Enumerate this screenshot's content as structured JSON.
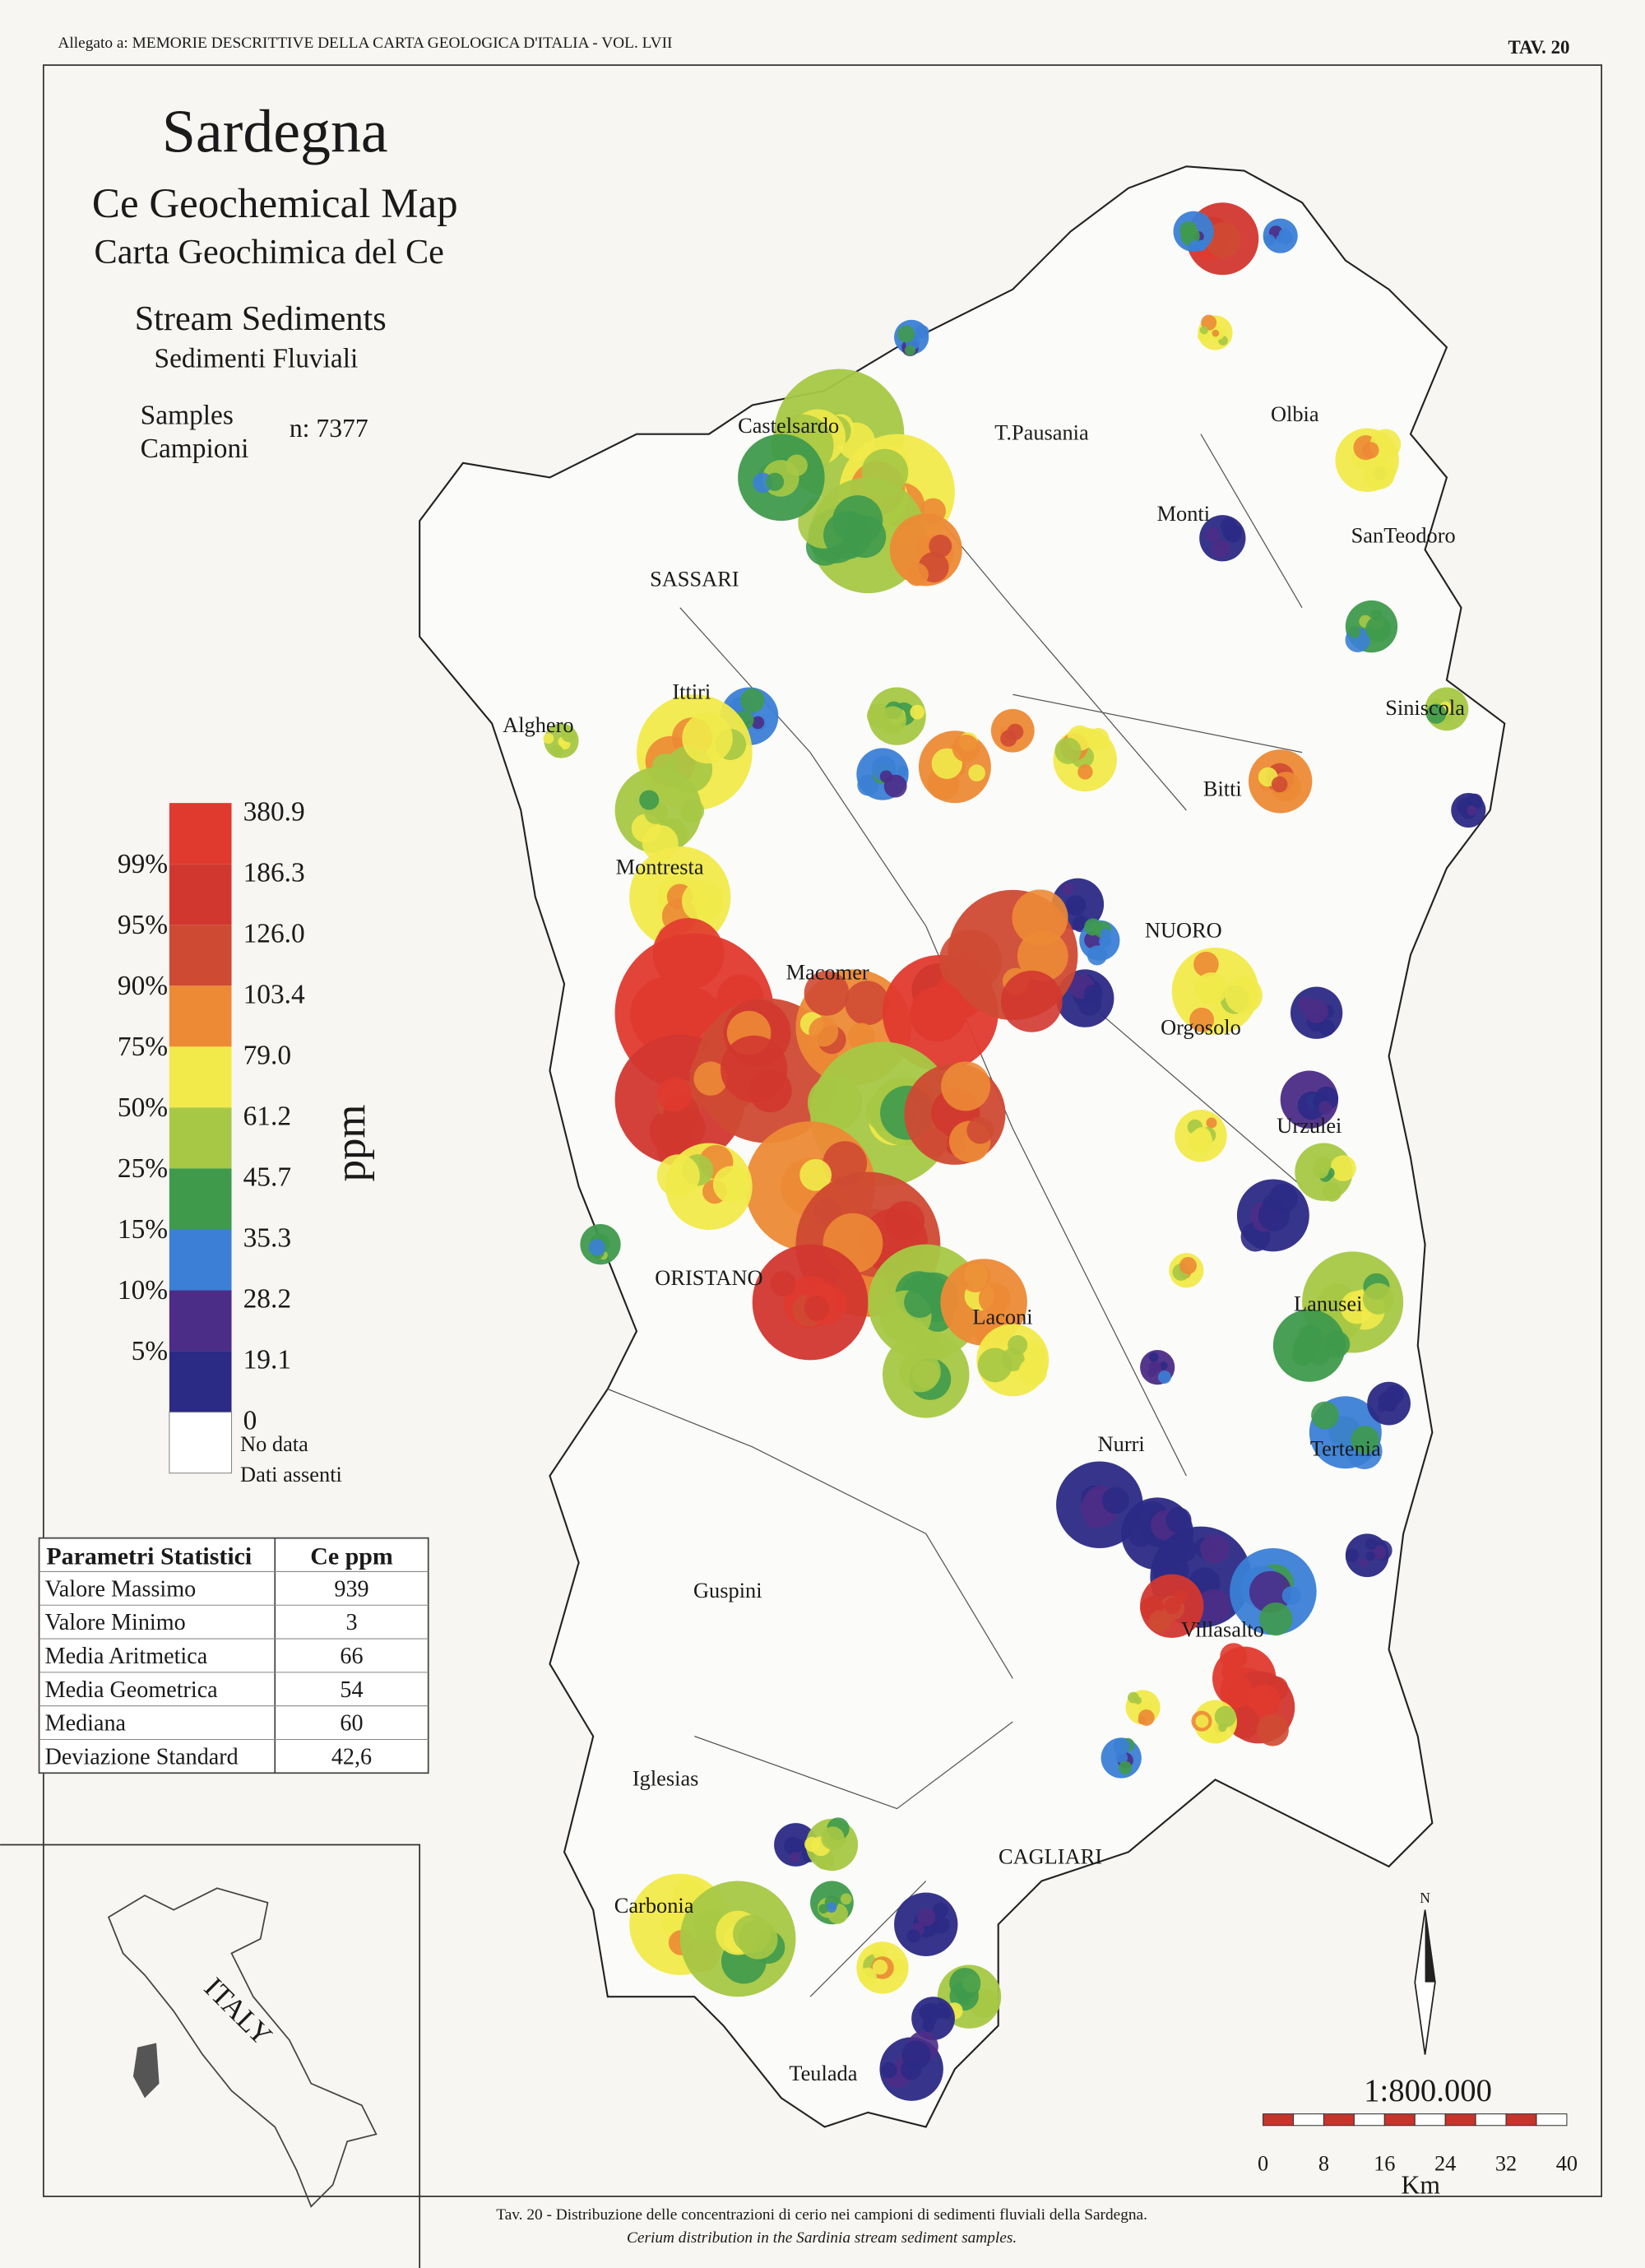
{
  "header": {
    "left": "Allegato a: MEMORIE DESCRITTIVE DELLA CARTA GEOLOGICA D'ITALIA - VOL. LVII",
    "right": "TAV. 20"
  },
  "title": {
    "region": "Sardegna",
    "en": "Ce Geochemical Map",
    "it": "Carta Geochimica del Ce",
    "media_en": "Stream Sediments",
    "media_it": "Sedimenti Fluviali",
    "samples_en": "Samples",
    "samples_it": "Campioni",
    "n": "n: 7377"
  },
  "legend": {
    "unit": "ppm",
    "breaks": [
      "380.9",
      "186.3",
      "126.0",
      "103.4",
      "79.0",
      "61.2",
      "45.7",
      "35.3",
      "28.2",
      "19.1",
      "0"
    ],
    "percentiles": [
      "99%",
      "95%",
      "90%",
      "75%",
      "50%",
      "25%",
      "15%",
      "10%",
      "5%"
    ],
    "colors": [
      "#e03a2f",
      "#d2372f",
      "#cf4a33",
      "#ec8a35",
      "#f1ea4a",
      "#a6c845",
      "#3f9a4c",
      "#3b7fd6",
      "#4b2c86",
      "#2b2a85"
    ],
    "nodata_color": "#ffffff",
    "nodata": [
      "No data",
      "Dati assenti"
    ]
  },
  "stats": {
    "header": [
      "Parametri Statistici",
      "Ce  ppm"
    ],
    "rows": [
      [
        "Valore Massimo",
        "939"
      ],
      [
        "Valore Minimo",
        "3"
      ],
      [
        "Media Aritmetica",
        "66"
      ],
      [
        "Media Geometrica",
        "54"
      ],
      [
        "Mediana",
        "60"
      ],
      [
        "Deviazione Standard",
        "42,6"
      ]
    ]
  },
  "places": [
    "Castelsardo",
    "T.Pausania",
    "Olbia",
    "Monti",
    "SanTeodoro",
    "SASSARI",
    "Ittiri",
    "Alghero",
    "Siniscola",
    "Bitti",
    "Montresta",
    "NUORO",
    "Macomer",
    "Orgosolo",
    "Urzulei",
    "ORISTANO",
    "Laconi",
    "Lanusei",
    "Nurri",
    "Tertenia",
    "Guspini",
    "Villasalto",
    "Iglesias",
    "CAGLIARI",
    "Carbonia",
    "Teulada"
  ],
  "inset": {
    "label": "ITALY"
  },
  "north": "N",
  "scale": {
    "ratio": "1:800.000",
    "ticks": [
      "0",
      "8",
      "16",
      "24",
      "32",
      "40"
    ],
    "unit": "Km"
  },
  "caption": [
    "Tav. 20 - Distribuzione delle concentrazioni di cerio nei campioni di sedimenti fluviali della Sardegna.",
    "Cerium distribution in the Sardinia stream sediment samples."
  ]
}
